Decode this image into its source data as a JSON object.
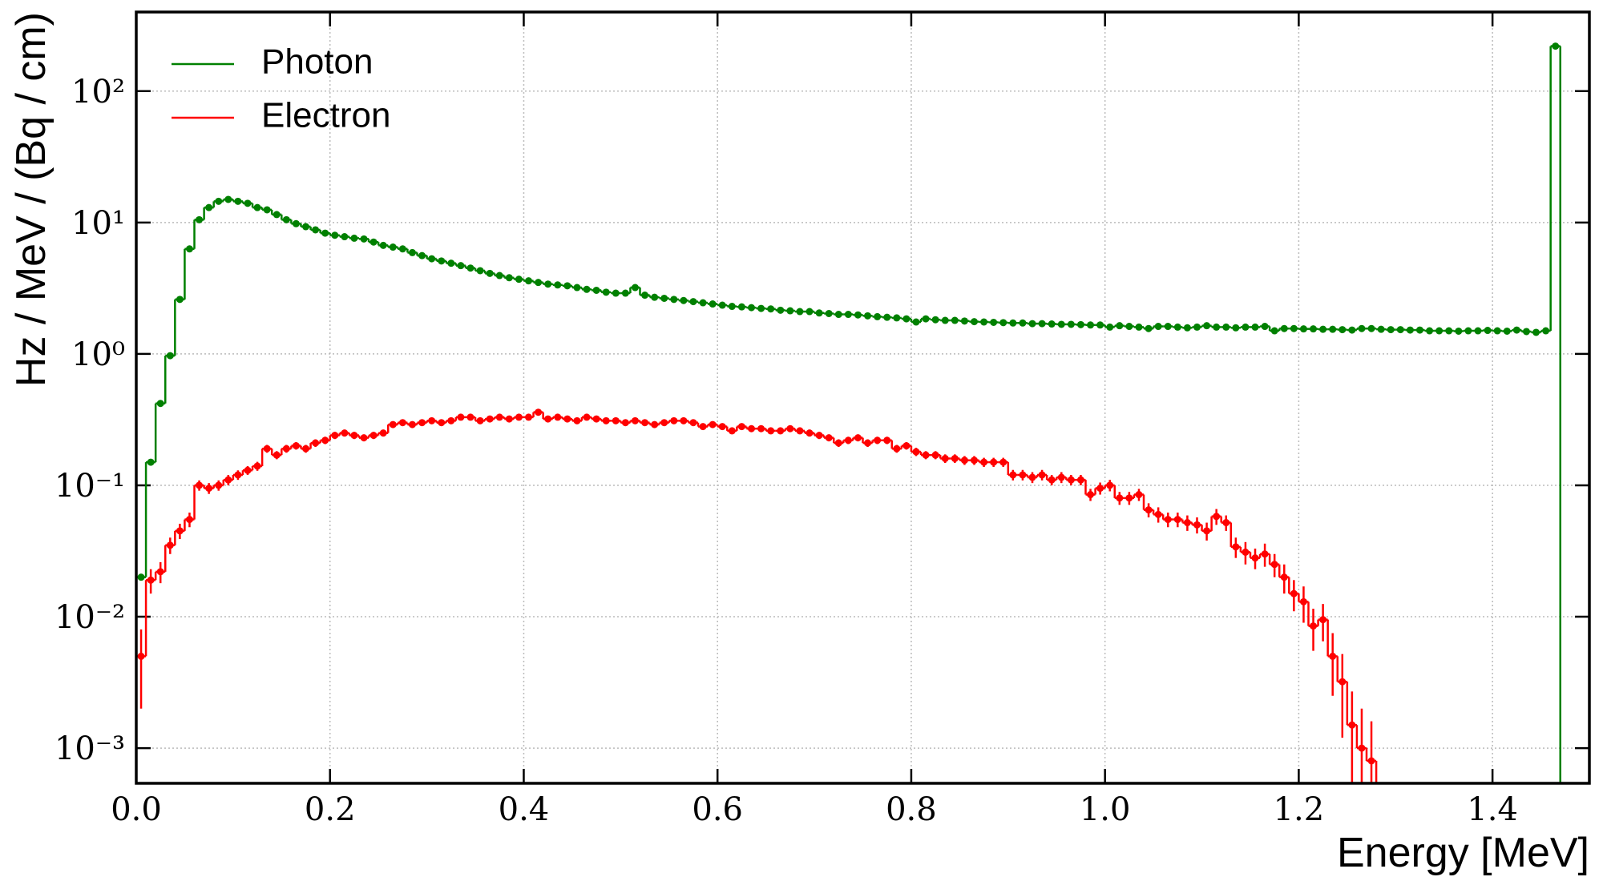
{
  "chart_data": {
    "type": "histogram",
    "xlabel": "Energy [MeV]",
    "ylabel": "Hz / MeV / (Bq / cm)",
    "bins": [
      0,
      0.01,
      0.02,
      0.03,
      0.04,
      0.05,
      0.06,
      0.07,
      0.08,
      0.09,
      0.1,
      0.11,
      0.12,
      0.13,
      0.14,
      0.15,
      0.16,
      0.17,
      0.18,
      0.19,
      0.2,
      0.21,
      0.22,
      0.23,
      0.24,
      0.25,
      0.26,
      0.27,
      0.28,
      0.29,
      0.3,
      0.31,
      0.32,
      0.33,
      0.34,
      0.35,
      0.36,
      0.37,
      0.38,
      0.39,
      0.4,
      0.41,
      0.42,
      0.43,
      0.44,
      0.45,
      0.46,
      0.47,
      0.48,
      0.49,
      0.5,
      0.51,
      0.52,
      0.53,
      0.54,
      0.55,
      0.56,
      0.57,
      0.58,
      0.59,
      0.6,
      0.61,
      0.62,
      0.63,
      0.64,
      0.65,
      0.66,
      0.67,
      0.68,
      0.69,
      0.7,
      0.71,
      0.72,
      0.73,
      0.74,
      0.75,
      0.76,
      0.77,
      0.78,
      0.79,
      0.8,
      0.81,
      0.82,
      0.83,
      0.84,
      0.85,
      0.86,
      0.87,
      0.88,
      0.89,
      0.9,
      0.91,
      0.92,
      0.93,
      0.94,
      0.95,
      0.96,
      0.97,
      0.98,
      0.99,
      1.0,
      1.01,
      1.02,
      1.03,
      1.04,
      1.05,
      1.06,
      1.07,
      1.08,
      1.09,
      1.1,
      1.11,
      1.12,
      1.13,
      1.14,
      1.15,
      1.16,
      1.17,
      1.18,
      1.19,
      1.2,
      1.21,
      1.22,
      1.23,
      1.24,
      1.25,
      1.26,
      1.27,
      1.28,
      1.29,
      1.3,
      1.31,
      1.32,
      1.33,
      1.34,
      1.35,
      1.36,
      1.37,
      1.38,
      1.39,
      1.4,
      1.41,
      1.42,
      1.43,
      1.44,
      1.45,
      1.46,
      1.47,
      1.48,
      1.49,
      1.5
    ],
    "series": [
      {
        "name": "Photon",
        "color": "#008000",
        "values": [
          0.02,
          0.15,
          0.42,
          0.97,
          2.6,
          6.3,
          10.5,
          13,
          14.5,
          15,
          14.5,
          14,
          13,
          12.5,
          11.5,
          10.5,
          9.8,
          9.3,
          8.8,
          8.3,
          8.0,
          7.8,
          7.6,
          7.5,
          7.1,
          6.7,
          6.5,
          6.3,
          5.9,
          5.6,
          5.3,
          5.1,
          4.9,
          4.7,
          4.5,
          4.3,
          4.1,
          3.95,
          3.8,
          3.7,
          3.6,
          3.5,
          3.4,
          3.35,
          3.3,
          3.2,
          3.1,
          3.05,
          2.95,
          2.9,
          2.9,
          3.2,
          2.8,
          2.7,
          2.65,
          2.6,
          2.55,
          2.5,
          2.45,
          2.4,
          2.35,
          2.3,
          2.28,
          2.25,
          2.22,
          2.2,
          2.15,
          2.13,
          2.1,
          2.1,
          2.05,
          2.03,
          2.0,
          2.0,
          1.98,
          1.95,
          1.92,
          1.9,
          1.88,
          1.85,
          1.75,
          1.85,
          1.82,
          1.8,
          1.8,
          1.78,
          1.76,
          1.75,
          1.74,
          1.73,
          1.72,
          1.72,
          1.7,
          1.7,
          1.69,
          1.68,
          1.68,
          1.67,
          1.66,
          1.66,
          1.6,
          1.64,
          1.62,
          1.6,
          1.56,
          1.62,
          1.62,
          1.6,
          1.58,
          1.6,
          1.64,
          1.6,
          1.6,
          1.58,
          1.6,
          1.6,
          1.62,
          1.5,
          1.56,
          1.56,
          1.55,
          1.55,
          1.54,
          1.54,
          1.53,
          1.52,
          1.56,
          1.56,
          1.54,
          1.53,
          1.53,
          1.52,
          1.52,
          1.5,
          1.5,
          1.5,
          1.49,
          1.5,
          1.5,
          1.51,
          1.5,
          1.49,
          1.52,
          1.48,
          1.46,
          1.5,
          220,
          null,
          null,
          null
        ]
      },
      {
        "name": "Electron",
        "color": "#ff0000",
        "values": [
          0.005,
          0.019,
          0.022,
          0.035,
          0.045,
          0.055,
          0.1,
          0.095,
          0.1,
          0.11,
          0.12,
          0.13,
          0.14,
          0.19,
          0.17,
          0.19,
          0.2,
          0.19,
          0.21,
          0.22,
          0.24,
          0.25,
          0.24,
          0.23,
          0.24,
          0.25,
          0.29,
          0.3,
          0.29,
          0.3,
          0.31,
          0.3,
          0.31,
          0.33,
          0.33,
          0.31,
          0.32,
          0.33,
          0.32,
          0.33,
          0.33,
          0.36,
          0.32,
          0.33,
          0.32,
          0.31,
          0.33,
          0.32,
          0.31,
          0.31,
          0.3,
          0.31,
          0.3,
          0.29,
          0.3,
          0.31,
          0.31,
          0.3,
          0.28,
          0.29,
          0.28,
          0.26,
          0.28,
          0.27,
          0.27,
          0.26,
          0.26,
          0.27,
          0.26,
          0.25,
          0.24,
          0.23,
          0.21,
          0.22,
          0.23,
          0.21,
          0.22,
          0.22,
          0.19,
          0.2,
          0.18,
          0.17,
          0.17,
          0.16,
          0.16,
          0.155,
          0.155,
          0.15,
          0.15,
          0.15,
          0.12,
          0.12,
          0.115,
          0.12,
          0.11,
          0.115,
          0.11,
          0.11,
          0.085,
          0.095,
          0.1,
          0.08,
          0.08,
          0.085,
          0.065,
          0.06,
          0.055,
          0.055,
          0.052,
          0.05,
          0.045,
          0.058,
          0.052,
          0.034,
          0.031,
          0.028,
          0.03,
          0.025,
          0.02,
          0.015,
          0.013,
          0.0085,
          0.0095,
          0.005,
          0.0032,
          0.0015,
          0.001,
          0.0008,
          null,
          null,
          null,
          null,
          null,
          null,
          null,
          null,
          null,
          null,
          null,
          null,
          null,
          null,
          null,
          null,
          null,
          null,
          null,
          null,
          null,
          null
        ],
        "errors": [
          0.003,
          0.004,
          0.004,
          0.005,
          0.006,
          0.007,
          0.009,
          0.009,
          0.009,
          0.01,
          0.01,
          0.01,
          0.011,
          0.013,
          0.012,
          0.013,
          0.013,
          0.013,
          0.014,
          0.014,
          0.015,
          0.015,
          0.015,
          0.014,
          0.015,
          0.015,
          0.016,
          0.016,
          0.016,
          0.016,
          0.017,
          0.016,
          0.017,
          0.017,
          0.017,
          0.017,
          0.017,
          0.017,
          0.017,
          0.017,
          0.017,
          0.018,
          0.017,
          0.017,
          0.017,
          0.017,
          0.017,
          0.017,
          0.017,
          0.017,
          0.016,
          0.017,
          0.016,
          0.016,
          0.016,
          0.017,
          0.017,
          0.016,
          0.016,
          0.016,
          0.016,
          0.015,
          0.016,
          0.015,
          0.015,
          0.015,
          0.015,
          0.015,
          0.015,
          0.015,
          0.015,
          0.014,
          0.014,
          0.014,
          0.014,
          0.014,
          0.014,
          0.014,
          0.013,
          0.013,
          0.013,
          0.012,
          0.012,
          0.012,
          0.012,
          0.012,
          0.012,
          0.012,
          0.012,
          0.012,
          0.011,
          0.011,
          0.011,
          0.011,
          0.01,
          0.011,
          0.01,
          0.01,
          0.009,
          0.01,
          0.01,
          0.009,
          0.009,
          0.009,
          0.008,
          0.008,
          0.007,
          0.007,
          0.007,
          0.007,
          0.007,
          0.008,
          0.007,
          0.006,
          0.006,
          0.005,
          0.006,
          0.005,
          0.005,
          0.004,
          0.004,
          0.003,
          0.003,
          0.0025,
          0.002,
          0.0012,
          0.001,
          0.0008,
          null,
          null,
          null,
          null,
          null,
          null,
          null,
          null,
          null,
          null,
          null,
          null,
          null,
          null,
          null,
          null,
          null,
          null,
          null,
          null,
          null,
          null
        ]
      }
    ],
    "xlim": [
      0,
      1.5
    ],
    "xticks": [
      {
        "value": 0,
        "label": "0.0"
      },
      0.2,
      0.4,
      0.6,
      0.8,
      {
        "value": 1.0,
        "label": "1.0"
      },
      1.2,
      1.4
    ],
    "yscale": "log",
    "ylim": [
      0.00054,
      400
    ],
    "yticks": [
      {
        "value": 0.001,
        "label": "10⁻³"
      },
      {
        "value": 0.01,
        "label": "10⁻²"
      },
      {
        "value": 0.1,
        "label": "10⁻¹"
      },
      {
        "value": 1,
        "label": "10⁰"
      },
      {
        "value": 10,
        "label": "10¹"
      },
      {
        "value": 100,
        "label": "10²"
      }
    ],
    "grid": true,
    "legend": "upper left"
  }
}
